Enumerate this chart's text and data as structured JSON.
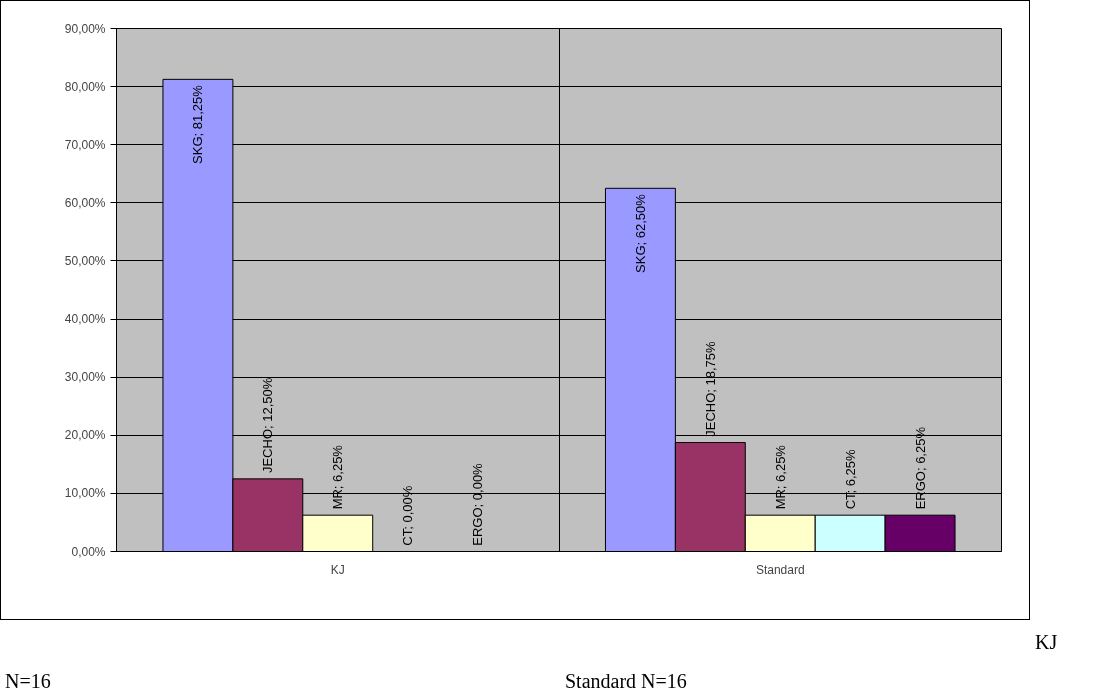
{
  "chart_data": {
    "type": "bar",
    "categories": [
      "KJ",
      "Standard"
    ],
    "series": [
      {
        "name": "SKG",
        "color": "#9999ff",
        "values": [
          81.25,
          62.5
        ],
        "value_labels": [
          "; 81,25%",
          "; 62,50%"
        ]
      },
      {
        "name": "JECHO",
        "color": "#993366",
        "values": [
          12.5,
          18.75
        ],
        "value_labels": [
          "; 12,50%",
          "; 18,75%"
        ]
      },
      {
        "name": "MR",
        "color": "#ffffcc",
        "values": [
          6.25,
          6.25
        ],
        "value_labels": [
          "; 6,25%",
          "; 6,25%"
        ]
      },
      {
        "name": "CT",
        "color": "#ccffff",
        "values": [
          0,
          6.25
        ],
        "value_labels": [
          "; 0,00%",
          "; 6,25%"
        ]
      },
      {
        "name": "ERGO",
        "color": "#660066",
        "values": [
          0,
          6.25
        ],
        "value_labels": [
          "; 0,00%",
          "; 6,25%"
        ]
      }
    ],
    "ylim": [
      0,
      90
    ],
    "yticks": [
      {
        "value": 0,
        "label": "0,00%"
      },
      {
        "value": 10,
        "label": "10,00%"
      },
      {
        "value": 20,
        "label": "20,00%"
      },
      {
        "value": 30,
        "label": "30,00%"
      },
      {
        "value": 40,
        "label": "40,00%"
      },
      {
        "value": 50,
        "label": "50,00%"
      },
      {
        "value": 60,
        "label": "60,00%"
      },
      {
        "value": 70,
        "label": "70,00%"
      },
      {
        "value": 80,
        "label": "80,00%"
      },
      {
        "value": 90,
        "label": "90,00%"
      }
    ],
    "grid": "y",
    "annotations": [
      "KJ",
      "N=16",
      "Standard N=16"
    ]
  }
}
